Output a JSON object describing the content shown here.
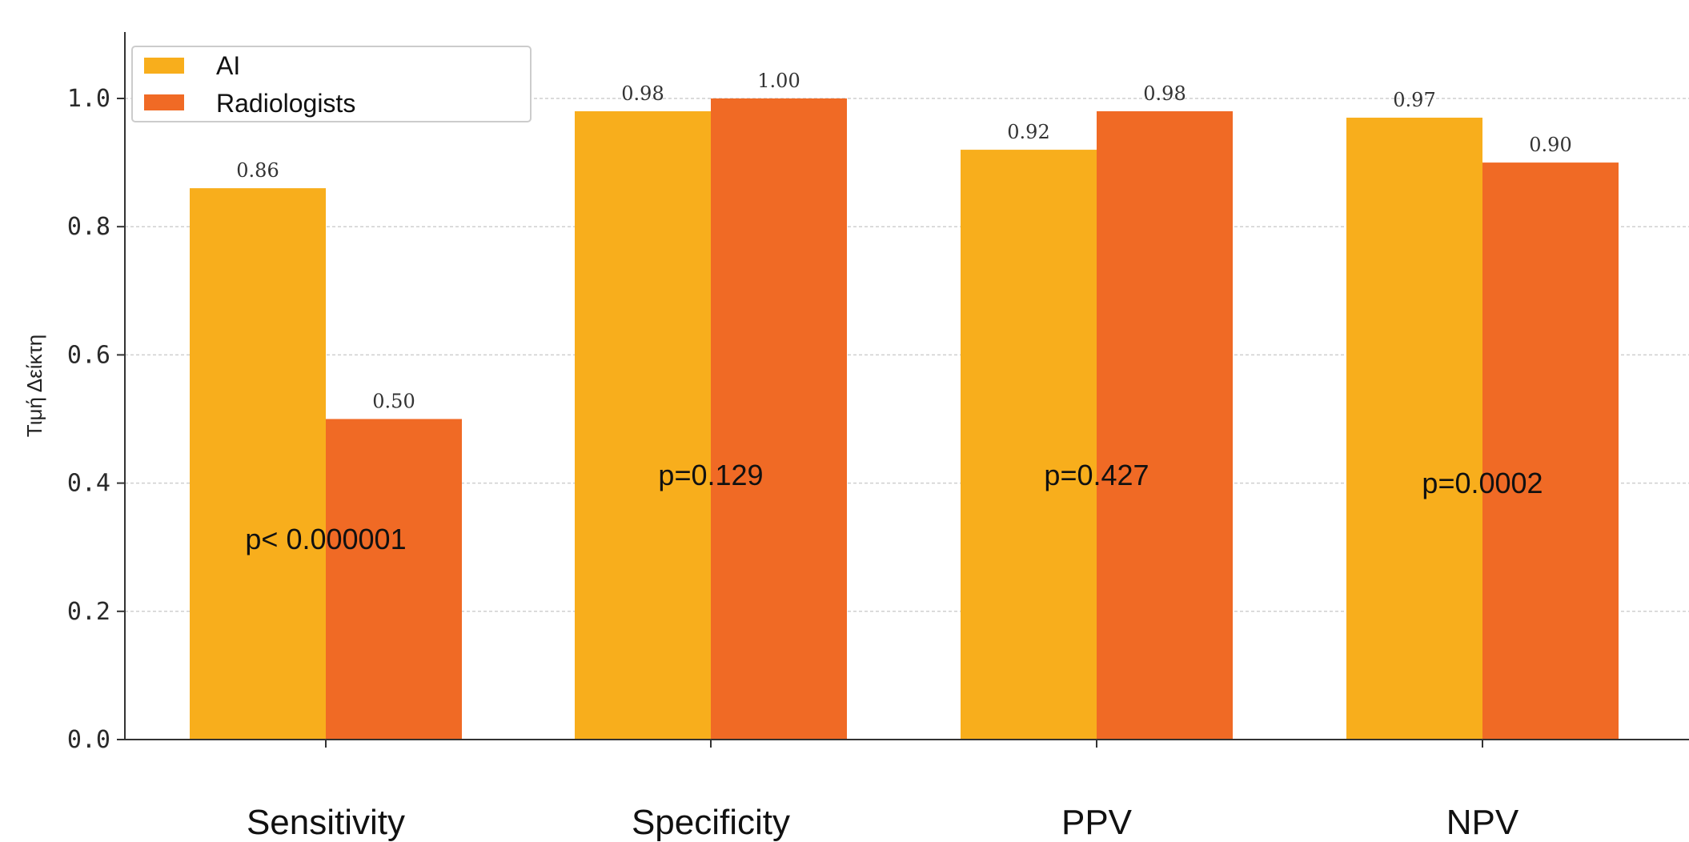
{
  "chart_data": {
    "type": "bar",
    "title": "",
    "xlabel": "",
    "ylabel": "Τιμή Δείκτη",
    "categories": [
      "Sensitivity",
      "Specificity",
      "PPV",
      "NPV"
    ],
    "series": [
      {
        "name": "AI",
        "color": "#F8AE1C",
        "values": [
          0.86,
          0.98,
          0.92,
          0.97
        ],
        "labels": [
          "0.86",
          "0.98",
          "0.92",
          "0.97"
        ]
      },
      {
        "name": "Radiologists",
        "color": "#F06A25",
        "values": [
          0.5,
          1.0,
          0.98,
          0.9
        ],
        "labels": [
          "0.50",
          "1.00",
          "0.98",
          "0.90"
        ]
      }
    ],
    "annotations": [
      "p< 0.000001",
      "p=0.129",
      "p=0.427",
      "p=0.0002"
    ],
    "ylim": [
      0,
      1.1
    ],
    "yticks": [
      "0.0",
      "0.2",
      "0.4",
      "0.6",
      "0.8",
      "1.0"
    ],
    "grid": true,
    "legend_position": "top-left"
  }
}
